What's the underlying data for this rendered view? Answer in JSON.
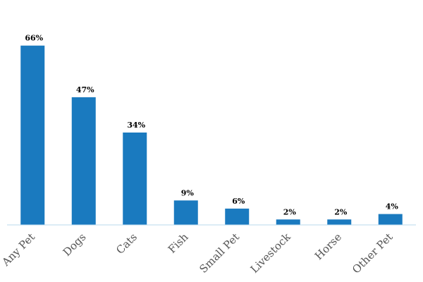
{
  "chart_data": {
    "type": "bar",
    "categories": [
      "Any Pet",
      "Dogs",
      "Cats",
      "Fish",
      "Small Pet",
      "Livestock",
      "Horse",
      "Other Pet"
    ],
    "values": [
      66,
      47,
      34,
      9,
      6,
      2,
      2,
      4
    ],
    "value_labels": [
      "66%",
      "47%",
      "34%",
      "9%",
      "6%",
      "2%",
      "2%",
      "4%"
    ],
    "color": "#1a7abf",
    "ylim": [
      0,
      75
    ]
  }
}
